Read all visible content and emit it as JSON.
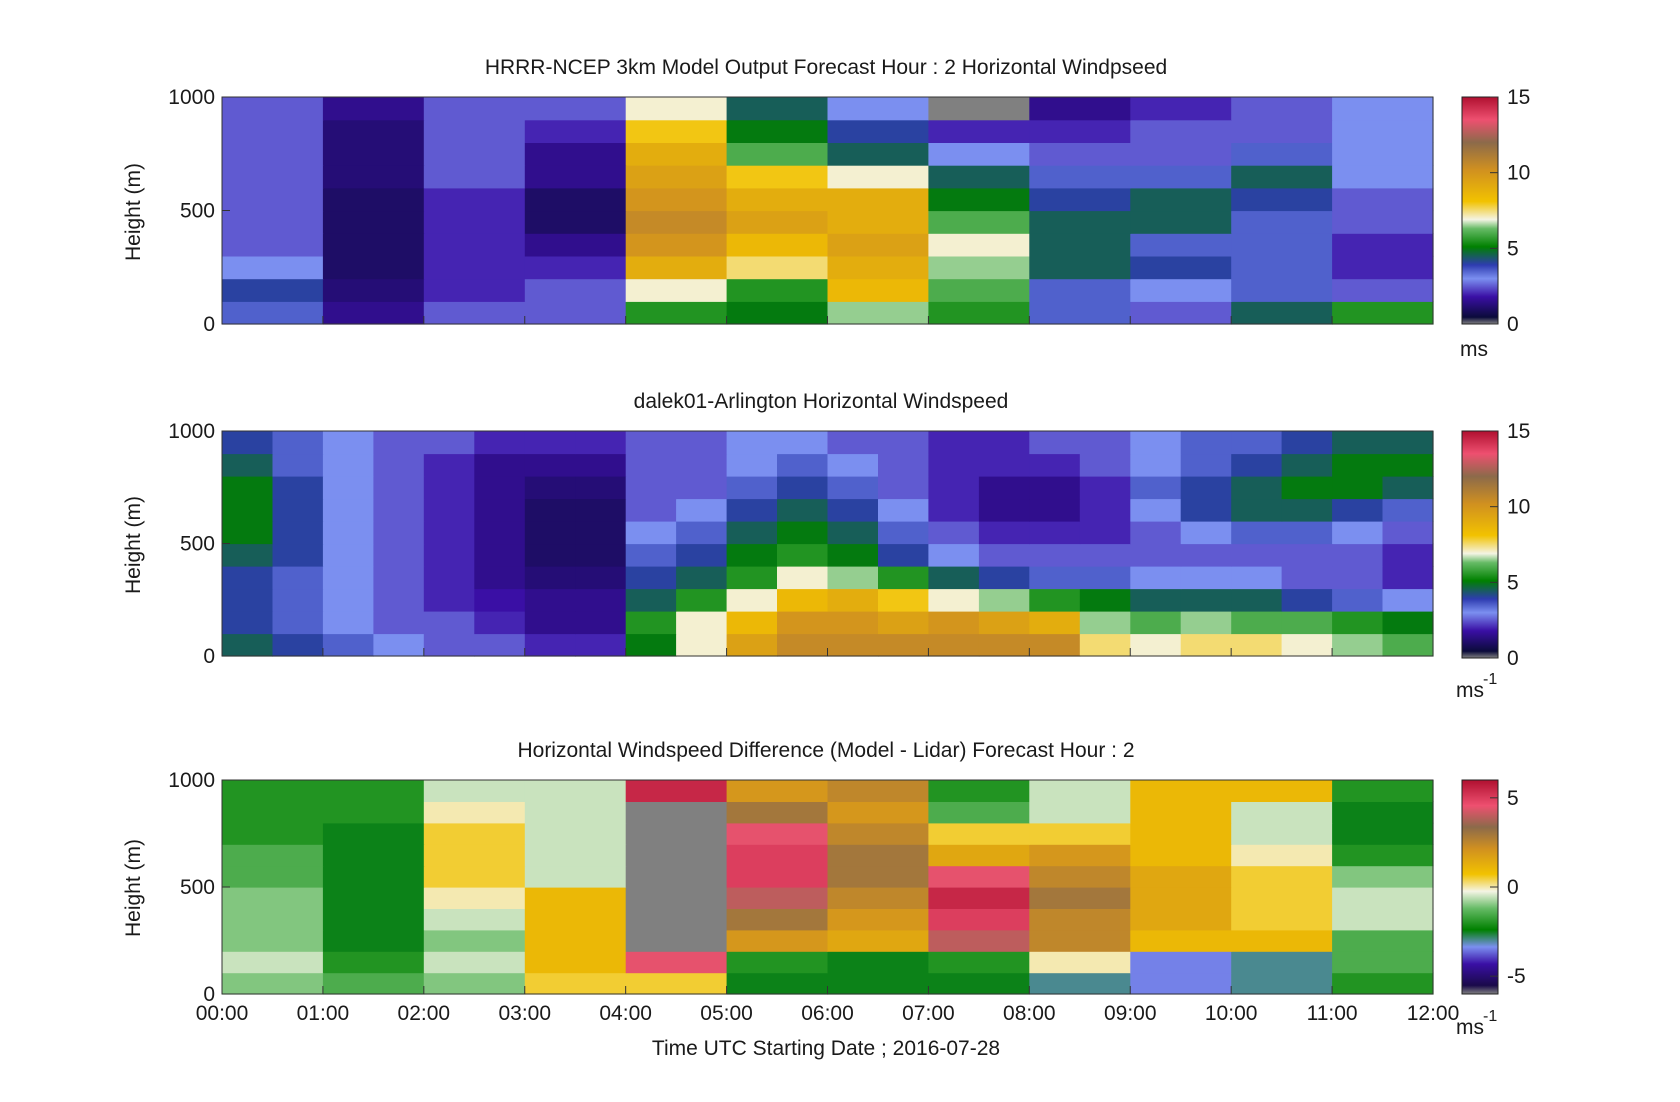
{
  "chart_data": [
    {
      "type": "heatmap",
      "title": "HRRR-NCEP 3km Model Output   Forecast Hour : 2 Horizontal Windpseed",
      "ylabel": "Height (m)",
      "xlabel": "",
      "ylim": [
        0,
        1000
      ],
      "xlim": [
        0,
        12
      ],
      "yticks": [
        "0",
        "500",
        "1000"
      ],
      "colorbar": {
        "ticks": [
          "0",
          "5",
          "10",
          "15"
        ],
        "tick_values": [
          0,
          5,
          10,
          15
        ],
        "range": [
          0,
          15
        ],
        "unit": "ms",
        "unit_sup": ""
      },
      "x_hours": [
        0,
        1,
        2,
        3,
        4,
        5,
        6,
        7,
        8,
        9,
        10,
        11
      ],
      "y_levels_m": [
        0,
        100,
        200,
        300,
        400,
        500,
        600,
        700,
        800,
        900
      ],
      "values_ms": [
        [
          3.5,
          1.5,
          2.5,
          2.5,
          5.5,
          5.0,
          6.5,
          5.5,
          3.5,
          2.5,
          4.5,
          5.5
        ],
        [
          4.0,
          1.2,
          2.0,
          2.5,
          7.0,
          5.5,
          8.5,
          6.0,
          3.5,
          3.0,
          3.5,
          2.5
        ],
        [
          3.0,
          1.0,
          2.0,
          2.0,
          9.0,
          7.5,
          9.0,
          6.5,
          4.5,
          4.0,
          3.5,
          2.0
        ],
        [
          2.5,
          1.0,
          2.0,
          1.5,
          10.0,
          8.5,
          9.5,
          7.0,
          4.5,
          3.5,
          3.5,
          2.0
        ],
        [
          2.5,
          1.0,
          2.0,
          1.0,
          10.5,
          9.5,
          9.0,
          6.0,
          4.5,
          4.5,
          3.5,
          2.5
        ],
        [
          2.5,
          1.0,
          2.0,
          1.0,
          10.0,
          9.0,
          9.0,
          5.0,
          4.0,
          4.5,
          4.0,
          2.5
        ],
        [
          2.5,
          1.2,
          2.5,
          1.5,
          9.5,
          8.0,
          7.0,
          4.5,
          3.5,
          3.5,
          4.5,
          3.0
        ],
        [
          2.5,
          1.2,
          2.5,
          1.5,
          9.0,
          6.0,
          4.5,
          3.0,
          2.5,
          2.5,
          3.5,
          3.0
        ],
        [
          2.5,
          1.2,
          2.5,
          2.0,
          8.0,
          5.0,
          4.0,
          2.0,
          2.0,
          2.5,
          2.5,
          3.0
        ],
        [
          2.5,
          1.5,
          2.5,
          2.5,
          7.0,
          4.5,
          3.0,
          0.0,
          1.5,
          2.0,
          2.5,
          3.0
        ]
      ]
    },
    {
      "type": "heatmap",
      "title": "dalek01-Arlington  Horizontal Windspeed",
      "ylabel": "Height (m)",
      "xlabel": "",
      "ylim": [
        0,
        1000
      ],
      "xlim": [
        0,
        12
      ],
      "yticks": [
        "0",
        "500",
        "1000"
      ],
      "colorbar": {
        "ticks": [
          "0",
          "5",
          "10",
          "15"
        ],
        "tick_values": [
          0,
          5,
          10,
          15
        ],
        "range": [
          0,
          15
        ],
        "unit": "ms",
        "unit_sup": "-1"
      },
      "x_hours": [
        0,
        0.5,
        1,
        1.5,
        2,
        2.5,
        3,
        3.5,
        4,
        4.5,
        5,
        5.5,
        6,
        6.5,
        7,
        7.5,
        8,
        8.5,
        9,
        9.5,
        10,
        10.5,
        11,
        11.5
      ],
      "y_levels_m": [
        0,
        100,
        200,
        300,
        400,
        500,
        600,
        700,
        800,
        900
      ],
      "values_ms": [
        [
          4.5,
          4.0,
          3.5,
          3.0,
          2.5,
          2.5,
          2.0,
          2.0,
          5.0,
          7.0,
          9.5,
          10.5,
          10.5,
          10.5,
          10.5,
          10.5,
          10.5,
          7.5,
          7.0,
          7.5,
          7.5,
          7.0,
          6.5,
          6.0
        ],
        [
          4.0,
          3.5,
          3.0,
          2.5,
          2.5,
          2.0,
          1.5,
          1.5,
          5.5,
          7.0,
          8.5,
          10.0,
          10.0,
          9.5,
          10.0,
          9.5,
          9.0,
          6.5,
          6.0,
          6.5,
          6.0,
          6.0,
          5.5,
          5.0
        ],
        [
          4.0,
          3.5,
          3.0,
          2.5,
          2.0,
          1.8,
          1.5,
          1.5,
          4.5,
          5.5,
          7.0,
          8.5,
          9.0,
          8.0,
          7.0,
          6.5,
          5.5,
          5.0,
          4.5,
          4.5,
          4.5,
          4.0,
          3.5,
          3.0
        ],
        [
          4.0,
          3.5,
          3.0,
          2.5,
          2.0,
          1.5,
          1.2,
          1.2,
          4.0,
          4.5,
          5.5,
          7.0,
          6.5,
          5.5,
          4.5,
          4.0,
          3.5,
          3.5,
          3.0,
          3.0,
          3.0,
          2.5,
          2.5,
          2.0
        ],
        [
          4.5,
          4.0,
          3.0,
          2.5,
          2.0,
          1.5,
          1.0,
          1.0,
          3.5,
          4.0,
          5.0,
          5.5,
          5.0,
          4.0,
          3.0,
          2.5,
          2.5,
          2.5,
          2.5,
          2.5,
          2.5,
          2.5,
          2.5,
          2.0
        ],
        [
          5.0,
          4.0,
          3.0,
          2.5,
          2.0,
          1.5,
          1.0,
          1.0,
          3.0,
          3.5,
          4.5,
          5.0,
          4.5,
          3.5,
          2.5,
          2.0,
          2.0,
          2.0,
          2.5,
          3.0,
          3.5,
          3.5,
          3.0,
          2.5
        ],
        [
          5.0,
          4.0,
          3.0,
          2.5,
          2.0,
          1.5,
          1.0,
          1.0,
          2.5,
          3.0,
          4.0,
          4.5,
          4.0,
          3.0,
          2.0,
          1.5,
          1.5,
          2.0,
          3.0,
          4.0,
          4.5,
          4.5,
          4.0,
          3.5
        ],
        [
          5.0,
          4.0,
          3.0,
          2.5,
          2.0,
          1.5,
          1.2,
          1.2,
          2.5,
          2.5,
          3.5,
          4.0,
          3.5,
          2.5,
          2.0,
          1.5,
          1.5,
          2.0,
          3.5,
          4.0,
          4.5,
          5.0,
          5.0,
          4.5
        ],
        [
          4.5,
          3.5,
          3.0,
          2.5,
          2.0,
          1.5,
          1.5,
          1.5,
          2.5,
          2.5,
          3.0,
          3.5,
          3.0,
          2.5,
          2.0,
          2.0,
          2.0,
          2.5,
          3.0,
          3.5,
          4.0,
          4.5,
          5.0,
          5.0
        ],
        [
          4.0,
          3.5,
          3.0,
          2.5,
          2.5,
          2.0,
          2.0,
          2.0,
          2.5,
          2.5,
          3.0,
          3.0,
          2.5,
          2.5,
          2.0,
          2.0,
          2.5,
          2.5,
          3.0,
          3.5,
          3.5,
          4.0,
          4.5,
          4.5
        ]
      ]
    },
    {
      "type": "heatmap",
      "title": "Horizontal Windspeed Difference (Model - Lidar) Forecast Hour : 2",
      "ylabel": "Height (m)",
      "xlabel": "Time UTC  Starting Date ; 2016-07-28",
      "ylim": [
        0,
        1000
      ],
      "xlim": [
        0,
        12
      ],
      "yticks": [
        "0",
        "500",
        "1000"
      ],
      "xticks": [
        "00:00",
        "01:00",
        "02:00",
        "03:00",
        "04:00",
        "05:00",
        "06:00",
        "07:00",
        "08:00",
        "09:00",
        "10:00",
        "11:00",
        "12:00"
      ],
      "colorbar": {
        "ticks": [
          "-5",
          "0",
          "5"
        ],
        "tick_values": [
          -5,
          0,
          5
        ],
        "range": [
          -6,
          6
        ],
        "unit": "ms",
        "unit_sup": "-1"
      },
      "x_hours": [
        0,
        1,
        2,
        3,
        4,
        5,
        6,
        7,
        8,
        9,
        10,
        11
      ],
      "y_levels_m": [
        0,
        100,
        200,
        300,
        400,
        500,
        600,
        700,
        800,
        900
      ],
      "values_ms": [
        [
          -1.0,
          -1.5,
          -1.0,
          0.5,
          0.5,
          -2.5,
          -2.5,
          -2.5,
          -3.0,
          -3.5,
          -3.0,
          -2.0
        ],
        [
          -0.5,
          -2.0,
          -0.5,
          1.0,
          4.5,
          -2.0,
          -2.5,
          -2.0,
          0.0,
          -3.5,
          -3.0,
          -1.5
        ],
        [
          -1.0,
          -2.5,
          -1.0,
          1.0,
          -7.0,
          2.0,
          1.5,
          4.0,
          2.5,
          1.0,
          1.0,
          -1.5
        ],
        [
          -1.0,
          -2.5,
          -0.5,
          1.0,
          -7.0,
          3.0,
          2.0,
          5.0,
          2.5,
          1.5,
          0.5,
          -0.5
        ],
        [
          -1.0,
          -2.5,
          0.0,
          1.0,
          -7.0,
          4.0,
          2.5,
          5.5,
          3.0,
          1.5,
          0.5,
          -0.5
        ],
        [
          -1.5,
          -2.5,
          0.5,
          -0.5,
          -7.0,
          5.0,
          3.0,
          4.5,
          2.5,
          1.5,
          0.5,
          -1.0
        ],
        [
          -1.5,
          -2.5,
          0.5,
          -0.5,
          -7.0,
          5.0,
          3.0,
          1.5,
          2.0,
          1.0,
          0.0,
          -2.0
        ],
        [
          -2.0,
          -2.5,
          0.5,
          -0.5,
          -7.0,
          4.5,
          2.5,
          0.5,
          0.5,
          1.0,
          -0.5,
          -2.5
        ],
        [
          -2.0,
          -2.0,
          0.0,
          -0.5,
          -7.0,
          3.0,
          2.0,
          -1.5,
          -0.5,
          1.0,
          -0.5,
          -2.5
        ],
        [
          -2.0,
          -2.0,
          -0.5,
          -0.5,
          5.5,
          2.0,
          2.5,
          -2.0,
          -0.5,
          1.0,
          1.0,
          -2.0
        ]
      ]
    }
  ]
}
